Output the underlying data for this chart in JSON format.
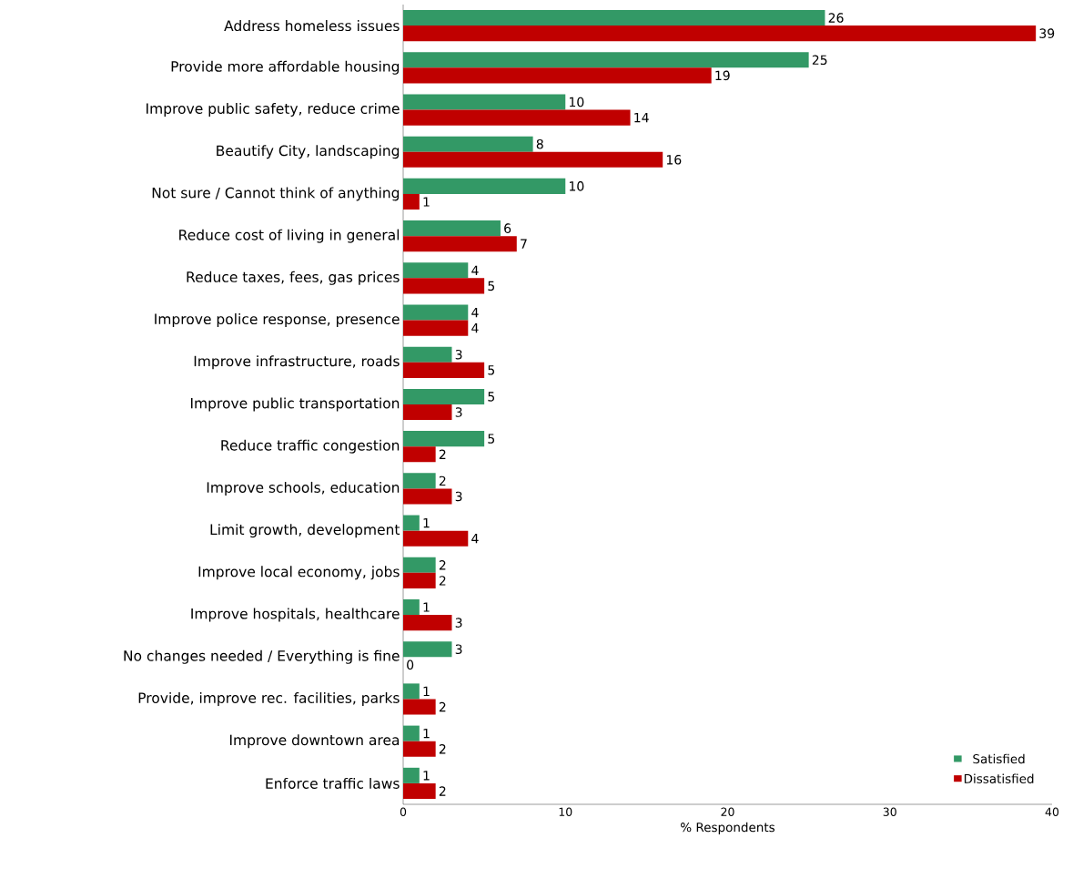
{
  "chart_data": {
    "type": "bar",
    "orientation": "horizontal",
    "xlabel": "% Respondents",
    "categories": [
      "Address homeless issues",
      "Provide more affordable housing",
      "Improve public safety, reduce crime",
      "Beautify City, landscaping",
      "Not sure / Cannot think of anything",
      "Reduce cost of living in general",
      "Reduce taxes, fees, gas prices",
      "Improve police response, presence",
      "Improve infrastructure, roads",
      "Improve public transportation",
      "Reduce traffic congestion",
      "Improve schools, education",
      "Limit growth, development",
      "Improve local economy, jobs",
      "Improve hospitals, healthcare",
      "No changes needed / Everything is fine",
      "Provide, improve rec. facilities, parks",
      "Improve downtown area",
      "Enforce traffic laws"
    ],
    "series": [
      {
        "name": "Satisfied",
        "color": "#339966",
        "values": [
          26,
          25,
          10,
          8,
          10,
          6,
          4,
          4,
          3,
          5,
          5,
          2,
          1,
          2,
          1,
          3,
          1,
          1,
          1
        ]
      },
      {
        "name": "Dissatisfied",
        "color": "#c00000",
        "values": [
          39,
          19,
          14,
          16,
          1,
          7,
          5,
          4,
          5,
          3,
          2,
          3,
          4,
          2,
          3,
          0,
          2,
          2,
          2
        ]
      }
    ],
    "xlim": [
      0,
      40
    ],
    "xticks": [
      0,
      10,
      20,
      30,
      40
    ],
    "data_labels": true,
    "legend": "bottom right",
    "grid": false
  }
}
